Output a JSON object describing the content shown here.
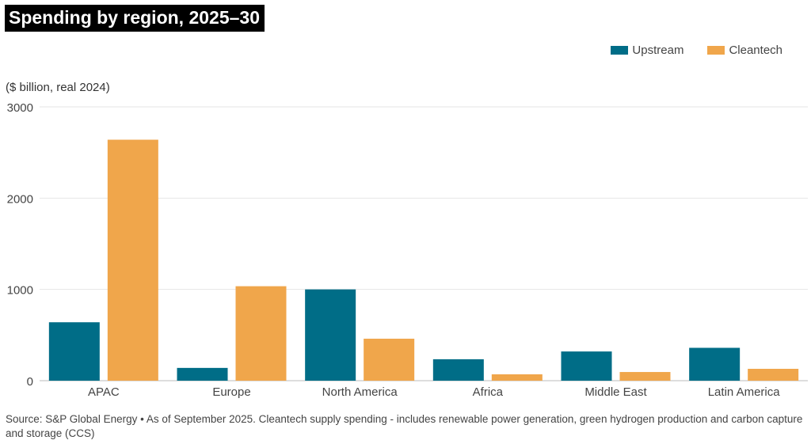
{
  "title": "Spending by region, 2025–30",
  "unit_label": "($ billion, real 2024)",
  "source": "Source: S&P Global Energy • As of September 2025. Cleantech supply spending - includes renewable power generation, green hydrogen production and carbon capture and storage (CCS)",
  "colors": {
    "Upstream": "#006d87",
    "Cleantech": "#f0a64b"
  },
  "chart_data": {
    "type": "bar",
    "title": "Spending by region, 2025–30",
    "ylabel": "($ billion, real 2024)",
    "xlabel": "",
    "categories": [
      "APAC",
      "Europe",
      "North America",
      "Africa",
      "Middle East",
      "Latin America"
    ],
    "series": [
      {
        "name": "Upstream",
        "values": [
          640,
          140,
          1000,
          235,
          320,
          360
        ]
      },
      {
        "name": "Cleantech",
        "values": [
          2640,
          1035,
          460,
          70,
          95,
          130
        ]
      }
    ],
    "ylim": [
      0,
      3000
    ],
    "yticks": [
      0,
      1000,
      2000,
      3000
    ],
    "grid": true,
    "legend": "top-right"
  }
}
